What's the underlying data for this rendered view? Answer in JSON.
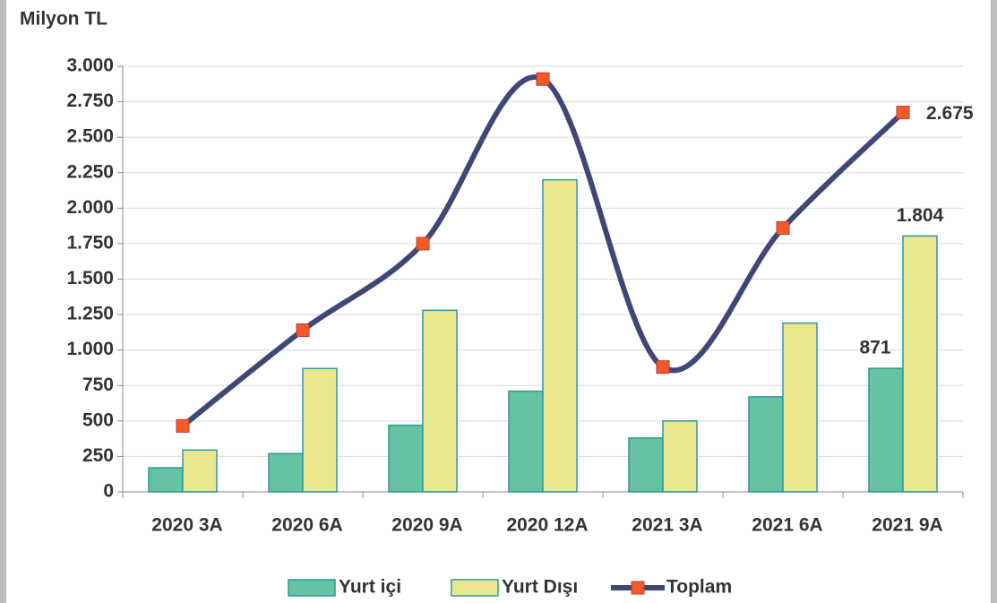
{
  "chart_data": {
    "type": "bar-line",
    "title": "Milyon TL",
    "categories": [
      "2020 3A",
      "2020 6A",
      "2020 9A",
      "2020 12A",
      "2021 3A",
      "2021 6A",
      "2021 9A"
    ],
    "series": [
      {
        "name": "Yurt içi",
        "type": "bar",
        "color": "#66c3a1",
        "values": [
          170,
          270,
          470,
          710,
          380,
          670,
          871
        ],
        "value_labels": [
          null,
          null,
          null,
          null,
          null,
          null,
          "871"
        ]
      },
      {
        "name": "Yurt Dışı",
        "type": "bar",
        "color": "#e9e78e",
        "values": [
          295,
          870,
          1280,
          2200,
          500,
          1190,
          1804
        ],
        "value_labels": [
          null,
          null,
          null,
          null,
          null,
          null,
          "1.804"
        ]
      },
      {
        "name": "Toplam",
        "type": "line",
        "color": "#3e4877",
        "marker_color": "#f25a2a",
        "values": [
          465,
          1140,
          1750,
          2910,
          880,
          1860,
          2675
        ],
        "value_labels": [
          null,
          null,
          null,
          null,
          null,
          null,
          "2.675"
        ]
      }
    ],
    "ylim": [
      0,
      3000
    ],
    "yticks": [
      0,
      250,
      500,
      750,
      {
        "value": 1000,
        "label": "1.000"
      },
      {
        "value": 1250,
        "label": "1.250"
      },
      {
        "value": 1500,
        "label": "1.500"
      },
      {
        "value": 1750,
        "label": "1.750"
      },
      {
        "value": 2000,
        "label": "2.000"
      },
      {
        "value": 2250,
        "label": "2.250"
      },
      {
        "value": 2500,
        "label": "2.500"
      },
      {
        "value": 2750,
        "label": "2.750"
      },
      {
        "value": 3000,
        "label": "3.000"
      }
    ],
    "grid": true,
    "legend": "bottom"
  }
}
